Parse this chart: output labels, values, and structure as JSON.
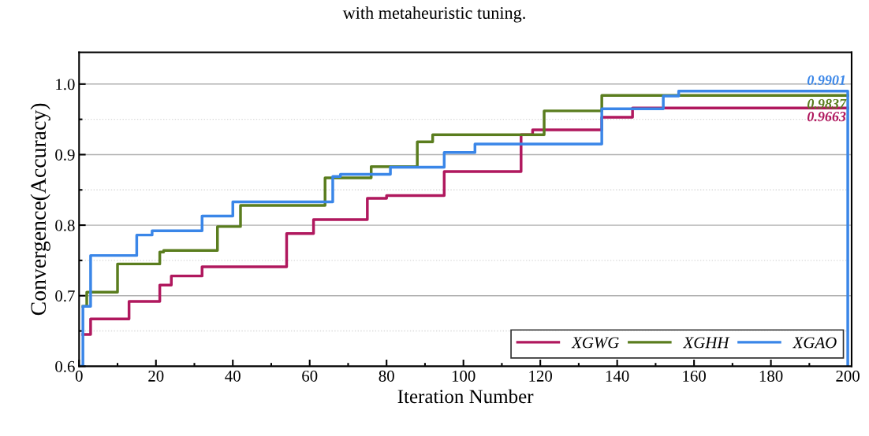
{
  "chart_data": {
    "type": "step",
    "title": "with metaheuristic tuning.",
    "xlabel": "Iteration Number",
    "ylabel": "Convergence(Accuracy)",
    "xlim": [
      0,
      201
    ],
    "xticks": [
      0,
      20,
      40,
      60,
      80,
      100,
      120,
      140,
      160,
      180,
      200
    ],
    "ylim": [
      0.6,
      1.045
    ],
    "yticks": [
      {
        "value": 0.6,
        "label": "0.6"
      },
      {
        "value": 0.7,
        "label": "0.7"
      },
      {
        "value": 0.8,
        "label": "0.8"
      },
      {
        "value": 0.9,
        "label": "0.9"
      },
      {
        "value": 1.0,
        "label": "1.0"
      }
    ],
    "grid": "y",
    "legend": "bottom right",
    "series": [
      {
        "name": "XGWG",
        "color": "#b0185e",
        "x": [
          1,
          3,
          13,
          21,
          24,
          32,
          54,
          61,
          75,
          80,
          95,
          115,
          118,
          136,
          144,
          200
        ],
        "values": [
          0.645,
          0.667,
          0.692,
          0.715,
          0.728,
          0.741,
          0.788,
          0.808,
          0.838,
          0.842,
          0.876,
          0.928,
          0.935,
          0.953,
          0.966,
          0.966
        ]
      },
      {
        "name": "XGHH",
        "color": "#5a7d1e",
        "x": [
          1,
          2,
          10,
          21,
          22,
          36,
          42,
          64,
          76,
          88,
          92,
          121,
          136,
          200
        ],
        "values": [
          0.685,
          0.705,
          0.745,
          0.762,
          0.764,
          0.798,
          0.828,
          0.867,
          0.883,
          0.918,
          0.928,
          0.962,
          0.984,
          0.984
        ]
      },
      {
        "name": "XGAO",
        "color": "#3a86e8",
        "x": [
          0.5,
          1,
          3,
          15,
          19,
          32,
          40,
          66,
          68,
          81,
          95,
          103,
          136,
          152,
          156,
          200
        ],
        "values": [
          0.6,
          0.685,
          0.757,
          0.786,
          0.792,
          0.813,
          0.833,
          0.869,
          0.872,
          0.882,
          0.903,
          0.915,
          0.965,
          0.983,
          0.99,
          0.6
        ]
      }
    ],
    "annotations": [
      "0.9901",
      "0.9837",
      "0.9663"
    ]
  }
}
